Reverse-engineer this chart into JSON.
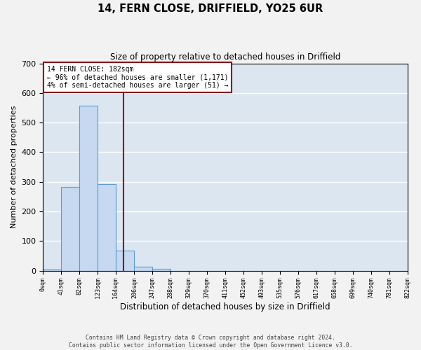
{
  "title": "14, FERN CLOSE, DRIFFIELD, YO25 6UR",
  "subtitle": "Size of property relative to detached houses in Driffield",
  "xlabel": "Distribution of detached houses by size in Driffield",
  "ylabel": "Number of detached properties",
  "bar_color": "#c6d9f0",
  "bar_edge_color": "#5b9bd5",
  "background_color": "#dce6f1",
  "fig_background": "#f2f2f2",
  "grid_color": "#ffffff",
  "bin_edges": [
    0,
    41,
    82,
    123,
    164,
    206,
    247,
    288,
    329,
    370,
    411,
    452,
    493,
    535,
    576,
    617,
    658,
    699,
    740,
    781,
    822
  ],
  "bin_labels": [
    "0sqm",
    "41sqm",
    "82sqm",
    "123sqm",
    "164sqm",
    "206sqm",
    "247sqm",
    "288sqm",
    "329sqm",
    "370sqm",
    "411sqm",
    "452sqm",
    "493sqm",
    "535sqm",
    "576sqm",
    "617sqm",
    "658sqm",
    "699sqm",
    "740sqm",
    "781sqm",
    "822sqm"
  ],
  "counts": [
    5,
    282,
    558,
    292,
    69,
    14,
    7,
    0,
    0,
    0,
    0,
    0,
    0,
    0,
    0,
    0,
    0,
    0,
    0,
    0
  ],
  "ylim": [
    0,
    700
  ],
  "yticks": [
    0,
    100,
    200,
    300,
    400,
    500,
    600,
    700
  ],
  "property_line_x": 182,
  "property_line_color": "#8B0000",
  "annotation_text": "14 FERN CLOSE: 182sqm\n← 96% of detached houses are smaller (1,171)\n4% of semi-detached houses are larger (51) →",
  "annotation_box_color": "#ffffff",
  "annotation_box_edge": "#8B0000",
  "footer_line1": "Contains HM Land Registry data © Crown copyright and database right 2024.",
  "footer_line2": "Contains public sector information licensed under the Open Government Licence v3.0."
}
